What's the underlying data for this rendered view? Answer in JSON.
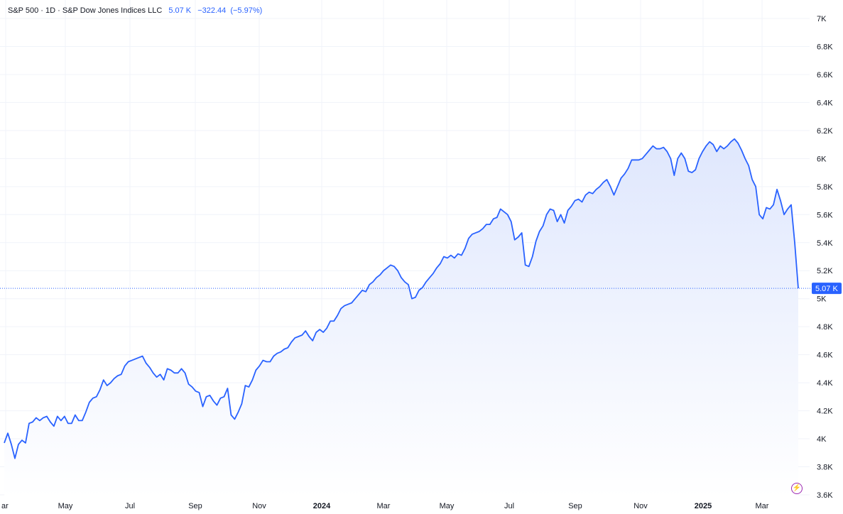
{
  "header": {
    "symbol_line": "S&P 500 · 1D · S&P Dow Jones Indices LLC",
    "last_price": "5.07 K",
    "change": "−322.44",
    "change_pct": "(−5.97%)"
  },
  "price_tag": "5.07 K",
  "logo_icon": "lightning-icon",
  "chart_data": {
    "type": "area",
    "title": "",
    "xlabel": "",
    "ylabel": "",
    "series": [
      {
        "values": [
          3970,
          4040,
          3960,
          3860,
          3960,
          3990,
          3970,
          4110,
          4120,
          4150,
          4130,
          4150,
          4160,
          4120,
          4090,
          4160,
          4130,
          4160,
          4110,
          4110,
          4170,
          4130,
          4130,
          4190,
          4260,
          4290,
          4300,
          4350,
          4420,
          4380,
          4400,
          4430,
          4450,
          4460,
          4520,
          4550,
          4560,
          4570,
          4580,
          4590,
          4540,
          4510,
          4470,
          4440,
          4460,
          4420,
          4500,
          4490,
          4470,
          4470,
          4500,
          4470,
          4390,
          4370,
          4340,
          4330,
          4230,
          4300,
          4310,
          4270,
          4240,
          4290,
          4300,
          4360,
          4170,
          4140,
          4190,
          4250,
          4380,
          4370,
          4420,
          4490,
          4520,
          4560,
          4550,
          4550,
          4590,
          4610,
          4620,
          4640,
          4650,
          4690,
          4720,
          4730,
          4740,
          4770,
          4730,
          4700,
          4760,
          4780,
          4760,
          4790,
          4840,
          4840,
          4880,
          4930,
          4950,
          4960,
          4970,
          5000,
          5030,
          5060,
          5050,
          5100,
          5120,
          5150,
          5170,
          5200,
          5220,
          5240,
          5230,
          5200,
          5150,
          5120,
          5100,
          5000,
          5010,
          5060,
          5080,
          5120,
          5150,
          5180,
          5220,
          5250,
          5300,
          5290,
          5310,
          5290,
          5320,
          5310,
          5360,
          5430,
          5460,
          5470,
          5480,
          5500,
          5530,
          5530,
          5570,
          5580,
          5640,
          5620,
          5600,
          5550,
          5420,
          5440,
          5470,
          5240,
          5230,
          5300,
          5410,
          5480,
          5520,
          5600,
          5640,
          5630,
          5550,
          5600,
          5540,
          5630,
          5660,
          5700,
          5710,
          5690,
          5740,
          5760,
          5750,
          5780,
          5800,
          5830,
          5850,
          5800,
          5740,
          5800,
          5860,
          5890,
          5930,
          5990,
          5990,
          5990,
          6000,
          6030,
          6060,
          6090,
          6070,
          6070,
          6080,
          6050,
          6000,
          5880,
          6000,
          6040,
          6000,
          5910,
          5900,
          5920,
          6000,
          6050,
          6090,
          6120,
          6100,
          6050,
          6090,
          6070,
          6090,
          6120,
          6140,
          6110,
          6060,
          6000,
          5950,
          5850,
          5800,
          5600,
          5570,
          5650,
          5640,
          5670,
          5780,
          5700,
          5600,
          5640,
          5670,
          5400,
          5074
        ],
        "last_value": 5074
      }
    ],
    "x_range": [
      "2023-03-01",
      "2025-04-04"
    ],
    "y_ticks": [
      "7K",
      "6.8K",
      "6.6K",
      "6.4K",
      "6.2K",
      "6K",
      "5.8K",
      "5.6K",
      "5.4K",
      "5.2K",
      "5K",
      "4.8K",
      "4.6K",
      "4.4K",
      "4.2K",
      "4K",
      "3.8K",
      "3.6K"
    ],
    "y_tick_values": [
      7000,
      6800,
      6600,
      6400,
      6200,
      6000,
      5800,
      5600,
      5400,
      5200,
      5000,
      4800,
      4600,
      4400,
      4200,
      4000,
      3800,
      3600
    ],
    "x_ticks": [
      "ar",
      "May",
      "Jul",
      "Sep",
      "Nov",
      "2024",
      "Mar",
      "May",
      "Jul",
      "Sep",
      "Nov",
      "2025",
      "Mar"
    ],
    "x_tick_bold": [
      false,
      false,
      false,
      false,
      false,
      true,
      false,
      false,
      false,
      false,
      false,
      true,
      false
    ],
    "grid": true,
    "colors": {
      "line": "#2962ff",
      "fill_top": "#dfe7fd",
      "fill_bottom": "#ffffff",
      "grid": "#f0f3fa",
      "price_tag_bg": "#2962ff"
    }
  }
}
